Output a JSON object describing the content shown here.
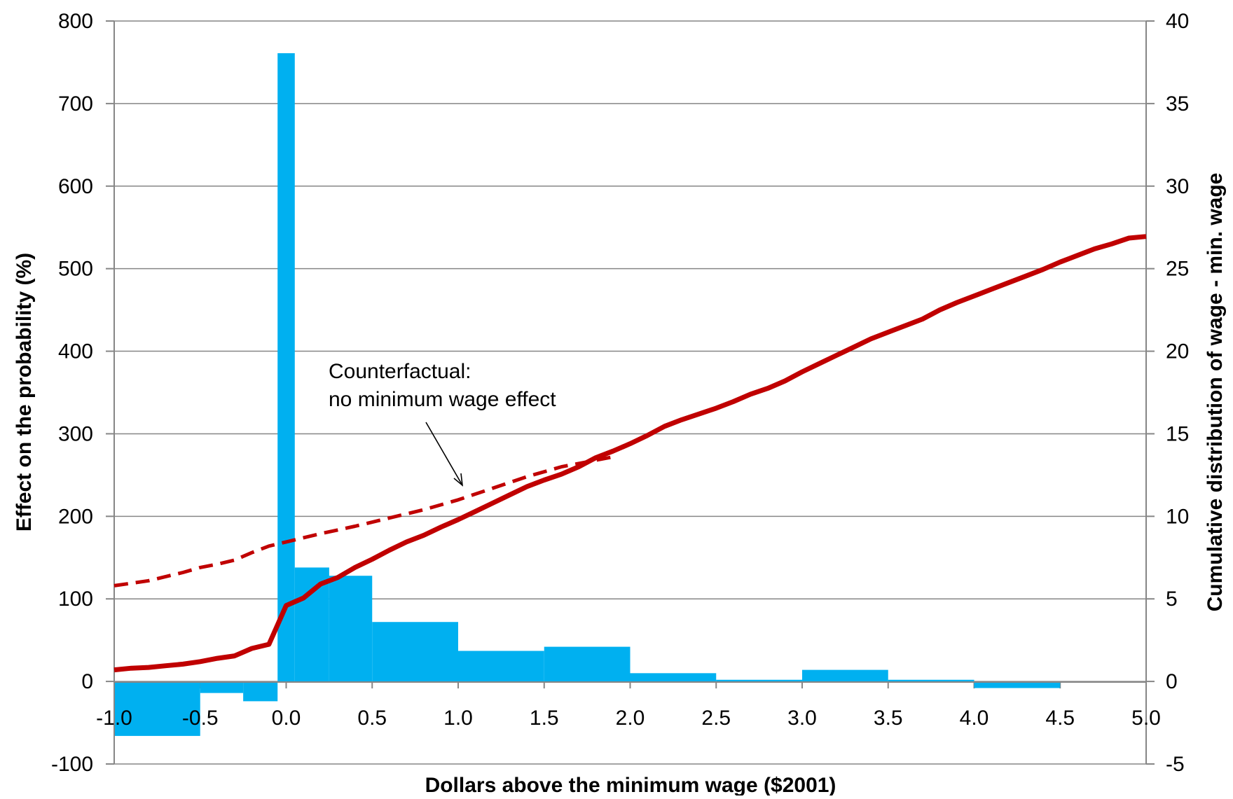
{
  "chart_data": {
    "type": "bar",
    "xlabel": "Dollars above the minimum wage ($2001)",
    "ylabel": "Effect on the probability (%)",
    "y2label": "Cumulative distribution of wage - min. wage",
    "xlim": [
      -1.0,
      5.0
    ],
    "ylim": [
      -100,
      800
    ],
    "y2lim": [
      -5,
      40
    ],
    "xticks": [
      "-1.0",
      "-0.5",
      "0.0",
      "0.5",
      "1.0",
      "1.5",
      "2.0",
      "2.5",
      "3.0",
      "3.5",
      "4.0",
      "4.5",
      "5.0"
    ],
    "yticks": [
      "-100",
      "0",
      "100",
      "200",
      "300",
      "400",
      "500",
      "600",
      "700",
      "800"
    ],
    "y2ticks": [
      "-5",
      "0",
      "5",
      "10",
      "15",
      "20",
      "25",
      "30",
      "35",
      "40"
    ],
    "grid": "horizontal",
    "bar_color": "#00b0f0",
    "line_color": "#c00000",
    "bars": [
      {
        "x0": -1.0,
        "x1": -0.5,
        "value": -66
      },
      {
        "x0": -0.5,
        "x1": -0.25,
        "value": -14
      },
      {
        "x0": -0.25,
        "x1": -0.05,
        "value": -24
      },
      {
        "x0": -0.05,
        "x1": 0.05,
        "value": 761
      },
      {
        "x0": 0.05,
        "x1": 0.25,
        "value": 138
      },
      {
        "x0": 0.25,
        "x1": 0.5,
        "value": 128
      },
      {
        "x0": 0.5,
        "x1": 1.0,
        "value": 72
      },
      {
        "x0": 1.0,
        "x1": 1.5,
        "value": 37
      },
      {
        "x0": 1.5,
        "x1": 2.0,
        "value": 42
      },
      {
        "x0": 2.0,
        "x1": 2.5,
        "value": 10
      },
      {
        "x0": 2.5,
        "x1": 3.0,
        "value": 2
      },
      {
        "x0": 3.0,
        "x1": 3.5,
        "value": 14
      },
      {
        "x0": 3.5,
        "x1": 4.0,
        "value": 2
      },
      {
        "x0": 4.0,
        "x1": 4.5,
        "value": -8
      },
      {
        "x0": 4.5,
        "x1": 5.0,
        "value": -1
      }
    ],
    "series": [
      {
        "style": "solid",
        "axis": "right",
        "x": [
          -1.0,
          -0.9,
          -0.8,
          -0.7,
          -0.6,
          -0.5,
          -0.4,
          -0.3,
          -0.2,
          -0.1,
          0.0,
          0.1,
          0.2,
          0.3,
          0.4,
          0.5,
          0.6,
          0.7,
          0.8,
          0.9,
          1.0,
          1.1,
          1.2,
          1.3,
          1.4,
          1.5,
          1.6,
          1.7,
          1.8,
          1.9,
          2.0,
          2.1,
          2.2,
          2.3,
          2.4,
          2.5,
          2.6,
          2.7,
          2.8,
          2.9,
          3.0,
          3.1,
          3.2,
          3.3,
          3.4,
          3.5,
          3.6,
          3.7,
          3.8,
          3.9,
          4.0,
          4.1,
          4.2,
          4.3,
          4.4,
          4.5,
          4.6,
          4.7,
          4.8,
          4.9,
          5.0
        ],
        "values": [
          0.7,
          0.8,
          0.85,
          0.95,
          1.05,
          1.2,
          1.4,
          1.55,
          2.0,
          2.25,
          4.6,
          5.05,
          5.9,
          6.3,
          6.9,
          7.4,
          7.95,
          8.45,
          8.85,
          9.35,
          9.8,
          10.3,
          10.8,
          11.3,
          11.8,
          12.2,
          12.55,
          13.0,
          13.55,
          13.95,
          14.4,
          14.9,
          15.45,
          15.85,
          16.2,
          16.55,
          16.95,
          17.4,
          17.75,
          18.2,
          18.75,
          19.25,
          19.75,
          20.25,
          20.75,
          21.15,
          21.55,
          21.95,
          22.5,
          22.95,
          23.35,
          23.75,
          24.15,
          24.55,
          24.95,
          25.4,
          25.8,
          26.2,
          26.5,
          26.85,
          26.95
        ]
      },
      {
        "style": "dashed",
        "axis": "right",
        "x": [
          -1.0,
          -0.8,
          -0.6,
          -0.5,
          -0.4,
          -0.3,
          -0.2,
          -0.1,
          0.0,
          0.2,
          0.4,
          0.6,
          0.8,
          1.0,
          1.2,
          1.4,
          1.6,
          1.8,
          1.9
        ],
        "values": [
          5.8,
          6.1,
          6.6,
          6.9,
          7.1,
          7.35,
          7.8,
          8.2,
          8.45,
          8.95,
          9.4,
          9.9,
          10.4,
          11.0,
          11.7,
          12.4,
          13.0,
          13.4,
          13.6
        ]
      }
    ],
    "annotations": [
      "Counterfactual:",
      "no minimum wage effect"
    ]
  }
}
